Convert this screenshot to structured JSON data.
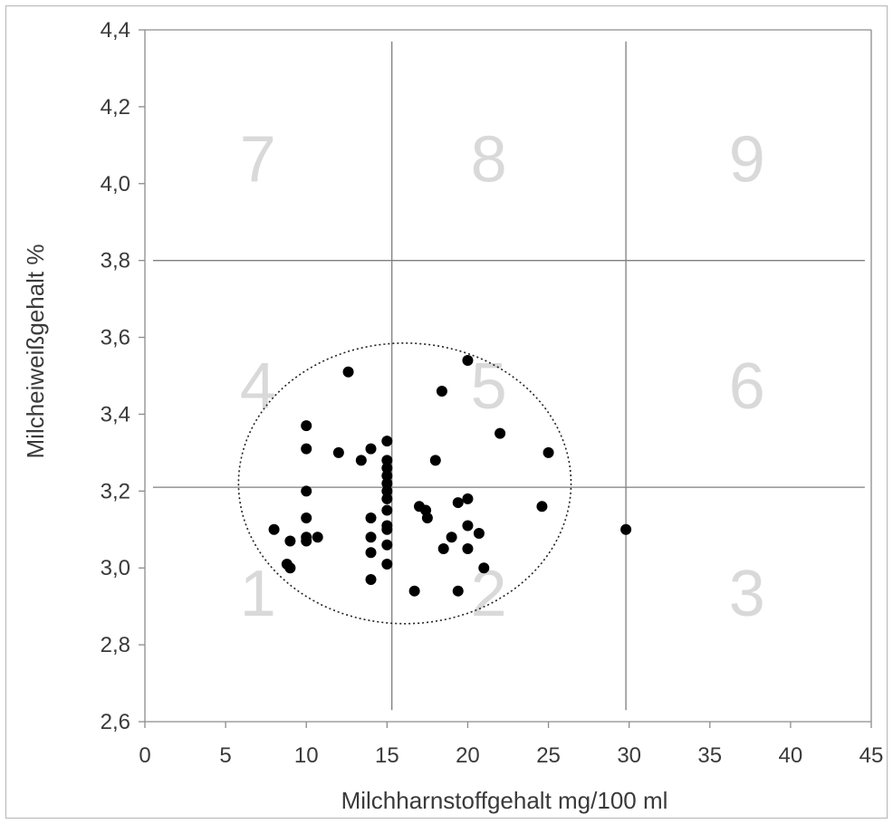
{
  "chart_data": {
    "type": "scatter",
    "xlabel": "Milchharnstoffgehalt mg/100 ml",
    "ylabel": "Milcheiweißgehalt %",
    "xlim": [
      0,
      45
    ],
    "ylim": [
      2.6,
      4.4
    ],
    "x_ticks": [
      "0",
      "5",
      "10",
      "15",
      "20",
      "25",
      "30",
      "35",
      "40",
      "45"
    ],
    "y_ticks": [
      "2,6",
      "2,8",
      "3,0",
      "3,2",
      "3,4",
      "3,6",
      "3,8",
      "4,0",
      "4,2",
      "4,4"
    ],
    "divider_lines": {
      "x": [
        15.3,
        29.8
      ],
      "y": [
        3.8,
        3.21
      ]
    },
    "zone_labels": [
      {
        "text": "1",
        "x": 7,
        "y": 2.92
      },
      {
        "text": "2",
        "x": 21.3,
        "y": 2.92
      },
      {
        "text": "3",
        "x": 37.3,
        "y": 2.92
      },
      {
        "text": "4",
        "x": 7,
        "y": 3.46
      },
      {
        "text": "5",
        "x": 21.3,
        "y": 3.46
      },
      {
        "text": "6",
        "x": 37.3,
        "y": 3.46
      },
      {
        "text": "7",
        "x": 7,
        "y": 4.05
      },
      {
        "text": "8",
        "x": 21.3,
        "y": 4.05
      },
      {
        "text": "9",
        "x": 37.3,
        "y": 4.05
      }
    ],
    "ellipse": {
      "cx": 16.1,
      "cy": 3.22,
      "rx": 10.3,
      "ry": 0.365,
      "style": "dotted"
    },
    "points": [
      {
        "x": 8.0,
        "y": 3.1
      },
      {
        "x": 8.8,
        "y": 3.01
      },
      {
        "x": 9.0,
        "y": 3.0
      },
      {
        "x": 9.0,
        "y": 3.07
      },
      {
        "x": 10.0,
        "y": 3.37
      },
      {
        "x": 10.0,
        "y": 3.31
      },
      {
        "x": 10.0,
        "y": 3.2
      },
      {
        "x": 10.0,
        "y": 3.13
      },
      {
        "x": 10.0,
        "y": 3.08
      },
      {
        "x": 10.0,
        "y": 3.07
      },
      {
        "x": 10.7,
        "y": 3.08
      },
      {
        "x": 12.0,
        "y": 3.3
      },
      {
        "x": 12.6,
        "y": 3.51
      },
      {
        "x": 13.4,
        "y": 3.28
      },
      {
        "x": 14.0,
        "y": 3.31
      },
      {
        "x": 14.0,
        "y": 3.13
      },
      {
        "x": 14.0,
        "y": 3.08
      },
      {
        "x": 14.0,
        "y": 3.04
      },
      {
        "x": 14.0,
        "y": 2.97
      },
      {
        "x": 15.0,
        "y": 3.33
      },
      {
        "x": 15.0,
        "y": 3.28
      },
      {
        "x": 15.0,
        "y": 3.26
      },
      {
        "x": 15.0,
        "y": 3.24
      },
      {
        "x": 15.0,
        "y": 3.22
      },
      {
        "x": 15.0,
        "y": 3.2
      },
      {
        "x": 15.0,
        "y": 3.18
      },
      {
        "x": 15.0,
        "y": 3.15
      },
      {
        "x": 15.0,
        "y": 3.11
      },
      {
        "x": 15.0,
        "y": 3.1
      },
      {
        "x": 15.0,
        "y": 3.06
      },
      {
        "x": 15.0,
        "y": 3.01
      },
      {
        "x": 16.7,
        "y": 2.94
      },
      {
        "x": 17.0,
        "y": 3.16
      },
      {
        "x": 17.4,
        "y": 3.15
      },
      {
        "x": 17.5,
        "y": 3.13
      },
      {
        "x": 18.0,
        "y": 3.28
      },
      {
        "x": 18.4,
        "y": 3.46
      },
      {
        "x": 18.5,
        "y": 3.05
      },
      {
        "x": 19.0,
        "y": 3.08
      },
      {
        "x": 19.4,
        "y": 3.17
      },
      {
        "x": 19.4,
        "y": 2.94
      },
      {
        "x": 20.0,
        "y": 3.54
      },
      {
        "x": 20.0,
        "y": 3.18
      },
      {
        "x": 20.0,
        "y": 3.11
      },
      {
        "x": 20.0,
        "y": 3.05
      },
      {
        "x": 20.7,
        "y": 3.09
      },
      {
        "x": 21.0,
        "y": 3.0
      },
      {
        "x": 22.0,
        "y": 3.35
      },
      {
        "x": 24.6,
        "y": 3.16
      },
      {
        "x": 25.0,
        "y": 3.3
      },
      {
        "x": 29.8,
        "y": 3.1
      }
    ],
    "grid": false,
    "legend": "none",
    "colors": {
      "points": "#000000",
      "dividers": "#7f7f7f",
      "zone_labels": "#d9d9d9",
      "axes": "#8c8c8c"
    }
  }
}
